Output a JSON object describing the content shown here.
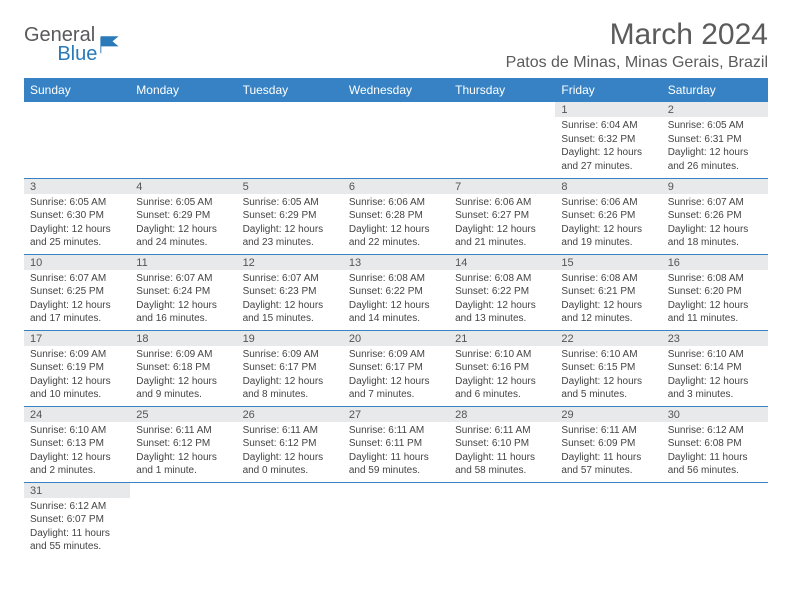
{
  "brand": {
    "name1": "General",
    "name2": "Blue",
    "logo_color": "#2a7ab9"
  },
  "header": {
    "month_title": "March 2024",
    "location": "Patos de Minas, Minas Gerais, Brazil"
  },
  "colors": {
    "header_bg": "#3682c4",
    "header_text": "#ffffff",
    "daynum_bg": "#e8e9ea",
    "border": "#3682c4",
    "title_color": "#5b5b5b"
  },
  "day_headers": [
    "Sunday",
    "Monday",
    "Tuesday",
    "Wednesday",
    "Thursday",
    "Friday",
    "Saturday"
  ],
  "calendar": {
    "first_weekday_index": 5,
    "days": [
      {
        "n": 1,
        "sunrise": "6:04 AM",
        "sunset": "6:32 PM",
        "daylight": "12 hours and 27 minutes."
      },
      {
        "n": 2,
        "sunrise": "6:05 AM",
        "sunset": "6:31 PM",
        "daylight": "12 hours and 26 minutes."
      },
      {
        "n": 3,
        "sunrise": "6:05 AM",
        "sunset": "6:30 PM",
        "daylight": "12 hours and 25 minutes."
      },
      {
        "n": 4,
        "sunrise": "6:05 AM",
        "sunset": "6:29 PM",
        "daylight": "12 hours and 24 minutes."
      },
      {
        "n": 5,
        "sunrise": "6:05 AM",
        "sunset": "6:29 PM",
        "daylight": "12 hours and 23 minutes."
      },
      {
        "n": 6,
        "sunrise": "6:06 AM",
        "sunset": "6:28 PM",
        "daylight": "12 hours and 22 minutes."
      },
      {
        "n": 7,
        "sunrise": "6:06 AM",
        "sunset": "6:27 PM",
        "daylight": "12 hours and 21 minutes."
      },
      {
        "n": 8,
        "sunrise": "6:06 AM",
        "sunset": "6:26 PM",
        "daylight": "12 hours and 19 minutes."
      },
      {
        "n": 9,
        "sunrise": "6:07 AM",
        "sunset": "6:26 PM",
        "daylight": "12 hours and 18 minutes."
      },
      {
        "n": 10,
        "sunrise": "6:07 AM",
        "sunset": "6:25 PM",
        "daylight": "12 hours and 17 minutes."
      },
      {
        "n": 11,
        "sunrise": "6:07 AM",
        "sunset": "6:24 PM",
        "daylight": "12 hours and 16 minutes."
      },
      {
        "n": 12,
        "sunrise": "6:07 AM",
        "sunset": "6:23 PM",
        "daylight": "12 hours and 15 minutes."
      },
      {
        "n": 13,
        "sunrise": "6:08 AM",
        "sunset": "6:22 PM",
        "daylight": "12 hours and 14 minutes."
      },
      {
        "n": 14,
        "sunrise": "6:08 AM",
        "sunset": "6:22 PM",
        "daylight": "12 hours and 13 minutes."
      },
      {
        "n": 15,
        "sunrise": "6:08 AM",
        "sunset": "6:21 PM",
        "daylight": "12 hours and 12 minutes."
      },
      {
        "n": 16,
        "sunrise": "6:08 AM",
        "sunset": "6:20 PM",
        "daylight": "12 hours and 11 minutes."
      },
      {
        "n": 17,
        "sunrise": "6:09 AM",
        "sunset": "6:19 PM",
        "daylight": "12 hours and 10 minutes."
      },
      {
        "n": 18,
        "sunrise": "6:09 AM",
        "sunset": "6:18 PM",
        "daylight": "12 hours and 9 minutes."
      },
      {
        "n": 19,
        "sunrise": "6:09 AM",
        "sunset": "6:17 PM",
        "daylight": "12 hours and 8 minutes."
      },
      {
        "n": 20,
        "sunrise": "6:09 AM",
        "sunset": "6:17 PM",
        "daylight": "12 hours and 7 minutes."
      },
      {
        "n": 21,
        "sunrise": "6:10 AM",
        "sunset": "6:16 PM",
        "daylight": "12 hours and 6 minutes."
      },
      {
        "n": 22,
        "sunrise": "6:10 AM",
        "sunset": "6:15 PM",
        "daylight": "12 hours and 5 minutes."
      },
      {
        "n": 23,
        "sunrise": "6:10 AM",
        "sunset": "6:14 PM",
        "daylight": "12 hours and 3 minutes."
      },
      {
        "n": 24,
        "sunrise": "6:10 AM",
        "sunset": "6:13 PM",
        "daylight": "12 hours and 2 minutes."
      },
      {
        "n": 25,
        "sunrise": "6:11 AM",
        "sunset": "6:12 PM",
        "daylight": "12 hours and 1 minute."
      },
      {
        "n": 26,
        "sunrise": "6:11 AM",
        "sunset": "6:12 PM",
        "daylight": "12 hours and 0 minutes."
      },
      {
        "n": 27,
        "sunrise": "6:11 AM",
        "sunset": "6:11 PM",
        "daylight": "11 hours and 59 minutes."
      },
      {
        "n": 28,
        "sunrise": "6:11 AM",
        "sunset": "6:10 PM",
        "daylight": "11 hours and 58 minutes."
      },
      {
        "n": 29,
        "sunrise": "6:11 AM",
        "sunset": "6:09 PM",
        "daylight": "11 hours and 57 minutes."
      },
      {
        "n": 30,
        "sunrise": "6:12 AM",
        "sunset": "6:08 PM",
        "daylight": "11 hours and 56 minutes."
      },
      {
        "n": 31,
        "sunrise": "6:12 AM",
        "sunset": "6:07 PM",
        "daylight": "11 hours and 55 minutes."
      }
    ]
  },
  "labels": {
    "sunrise": "Sunrise:",
    "sunset": "Sunset:",
    "daylight": "Daylight:"
  }
}
